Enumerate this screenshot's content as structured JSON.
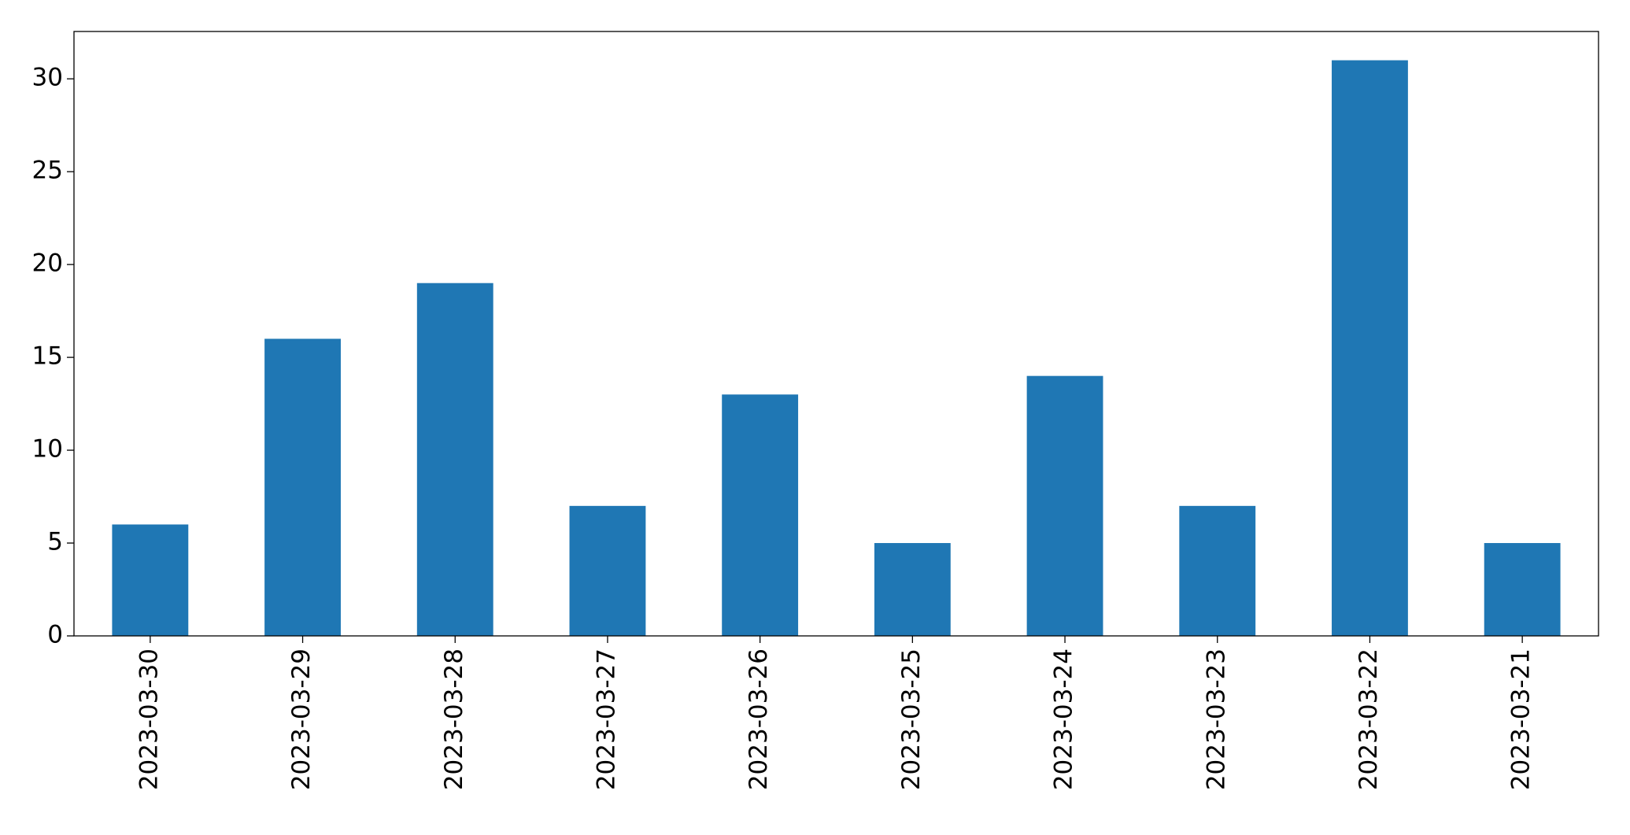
{
  "chart_data": {
    "type": "bar",
    "categories": [
      "2023-03-30",
      "2023-03-29",
      "2023-03-28",
      "2023-03-27",
      "2023-03-26",
      "2023-03-25",
      "2023-03-24",
      "2023-03-23",
      "2023-03-22",
      "2023-03-21"
    ],
    "values": [
      6,
      16,
      19,
      7,
      13,
      5,
      14,
      7,
      31,
      5
    ],
    "color": "#1f77b4",
    "ylim": [
      0,
      32.55
    ],
    "yticks": [
      0,
      5,
      10,
      15,
      20,
      25,
      30
    ],
    "grid": false
  }
}
